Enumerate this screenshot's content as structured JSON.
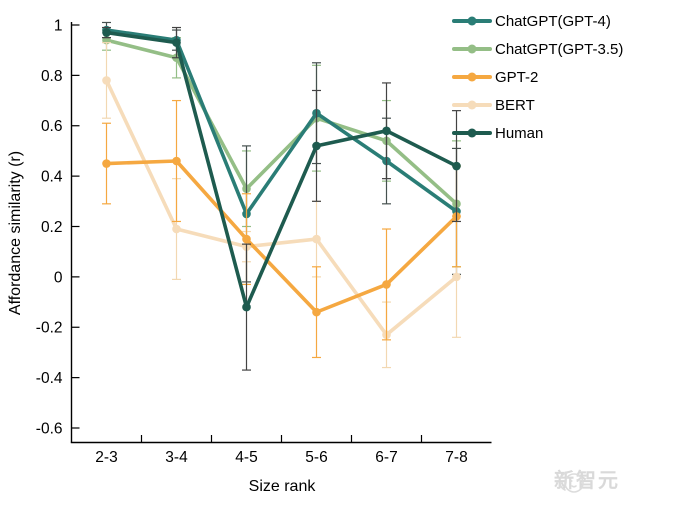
{
  "watermark": {
    "text": "新智元",
    "color": "#d9d9d9"
  },
  "chart_data": {
    "type": "line",
    "title": "",
    "xlabel": "Size rank",
    "ylabel": "Affordance similarity (r)",
    "categories": [
      "2-3",
      "3-4",
      "4-5",
      "5-6",
      "6-7",
      "7-8"
    ],
    "y_tick_labels": [
      "1",
      "0.8",
      "0.6",
      "0.4",
      "0.2",
      "0",
      "-0.2",
      "-0.4",
      "-0.6"
    ],
    "y_tick_values": [
      1,
      0.8,
      0.6,
      0.4,
      0.2,
      0,
      -0.2,
      -0.4,
      -0.6
    ],
    "ylim": [
      -0.6,
      1
    ],
    "grid": false,
    "error_bars": true,
    "legend_position": "top-right",
    "draw_order": [
      1,
      0,
      3,
      2,
      4
    ],
    "series": [
      {
        "name": "ChatGPT(GPT-4)",
        "slug": "chatgpt-gpt4",
        "color": "#2a7d76",
        "error_color": "#46514f",
        "values": [
          0.98,
          0.94,
          0.25,
          0.65,
          0.46,
          0.26
        ],
        "errors": [
          0.03,
          0.04,
          0.27,
          0.2,
          0.17,
          0.25
        ]
      },
      {
        "name": "ChatGPT(GPT-3.5)",
        "slug": "chatgpt-gpt35",
        "color": "#94be86",
        "error_color": "#94be86",
        "values": [
          0.94,
          0.87,
          0.35,
          0.63,
          0.54,
          0.29
        ],
        "errors": [
          0.04,
          0.08,
          0.15,
          0.21,
          0.16,
          0.25
        ]
      },
      {
        "name": "GPT-2",
        "slug": "gpt2",
        "color": "#f5a841",
        "error_color": "#f5a841",
        "values": [
          0.45,
          0.46,
          0.15,
          -0.14,
          -0.03,
          0.24
        ],
        "errors": [
          0.16,
          0.24,
          0.18,
          0.18,
          0.22,
          0.2
        ]
      },
      {
        "name": "BERT",
        "slug": "bert",
        "color": "#f6dcba",
        "error_color": "#f2d8b2",
        "values": [
          0.78,
          0.19,
          0.12,
          0.15,
          -0.23,
          0.0
        ],
        "errors": [
          0.15,
          0.2,
          0.06,
          0.15,
          0.13,
          0.24
        ]
      },
      {
        "name": "Human",
        "slug": "human",
        "color": "#1e5b4f",
        "error_color": "#434343",
        "values": [
          0.97,
          0.93,
          -0.12,
          0.52,
          0.58,
          0.44
        ],
        "errors": [
          0.02,
          0.06,
          0.25,
          0.22,
          0.19,
          0.22
        ]
      }
    ]
  }
}
